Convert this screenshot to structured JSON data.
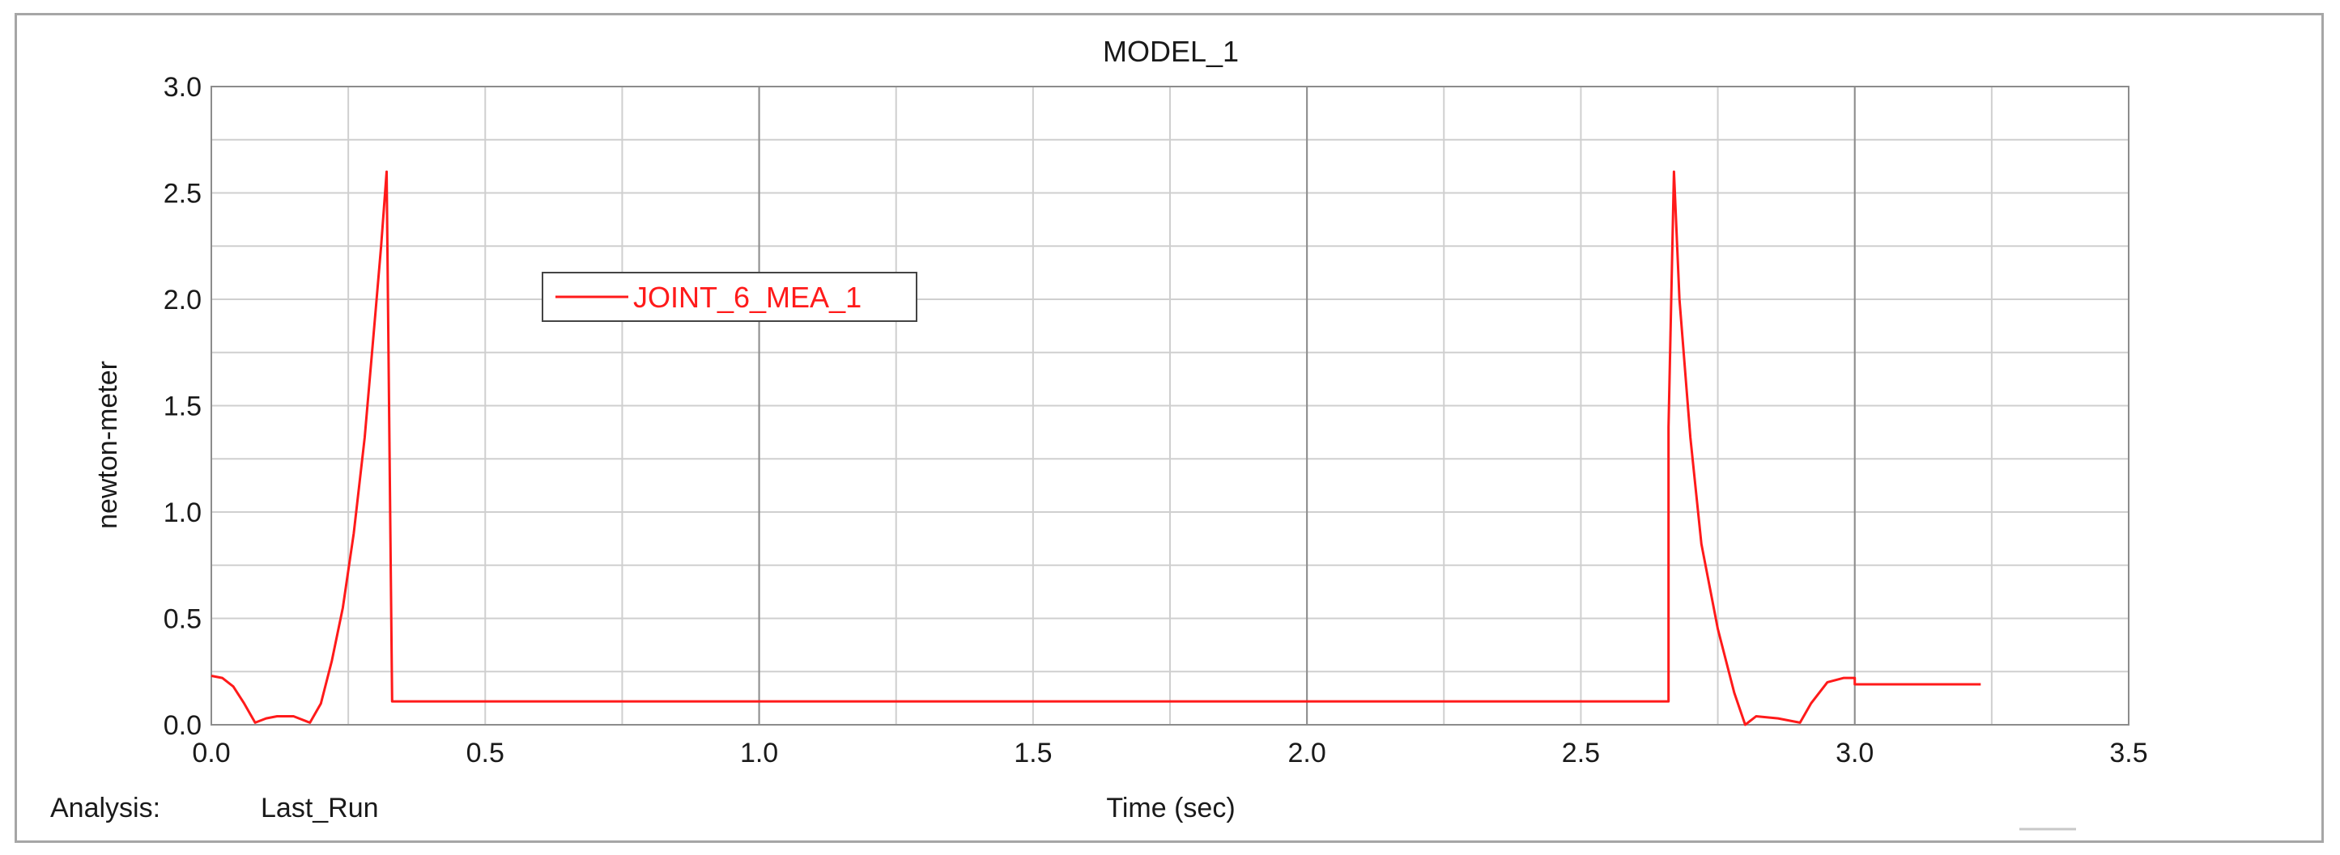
{
  "chart_data": {
    "type": "line",
    "title": "MODEL_1",
    "xlabel": "Time (sec)",
    "ylabel": "newton-meter",
    "analysis_label": "Analysis:",
    "analysis_value": "Last_Run",
    "xlim": [
      0.0,
      3.5
    ],
    "ylim": [
      0.0,
      3.0
    ],
    "x_ticks": [
      "0.0",
      "0.5",
      "1.0",
      "1.5",
      "2.0",
      "2.5",
      "3.0",
      "3.5"
    ],
    "y_ticks": [
      "0.0",
      "0.5",
      "1.0",
      "1.5",
      "2.0",
      "2.5",
      "3.0"
    ],
    "grid": true,
    "legend_position": "upper-left",
    "colors": {
      "series": "#ff1a1a",
      "grid_major": "#8c8c8c",
      "grid_minor": "#cfcfcf",
      "frame": "#a6a6a6"
    },
    "series": [
      {
        "name": "JOINT_6_MEA_1",
        "x": [
          0.0,
          0.02,
          0.04,
          0.06,
          0.08,
          0.1,
          0.12,
          0.15,
          0.18,
          0.2,
          0.22,
          0.24,
          0.26,
          0.28,
          0.3,
          0.31,
          0.32,
          0.33,
          0.33,
          0.5,
          1.0,
          1.5,
          2.0,
          2.5,
          2.66,
          2.66,
          2.67,
          2.68,
          2.7,
          2.72,
          2.75,
          2.78,
          2.8,
          2.82,
          2.86,
          2.9,
          2.92,
          2.95,
          2.98,
          3.0,
          3.0,
          3.23
        ],
        "y": [
          0.23,
          0.22,
          0.18,
          0.1,
          0.01,
          0.03,
          0.04,
          0.04,
          0.01,
          0.1,
          0.3,
          0.55,
          0.9,
          1.35,
          1.95,
          2.25,
          2.6,
          0.11,
          0.11,
          0.11,
          0.11,
          0.11,
          0.11,
          0.11,
          0.11,
          1.4,
          2.6,
          2.0,
          1.35,
          0.85,
          0.45,
          0.15,
          0.0,
          0.04,
          0.03,
          0.01,
          0.1,
          0.2,
          0.22,
          0.22,
          0.19,
          0.19
        ]
      }
    ]
  }
}
